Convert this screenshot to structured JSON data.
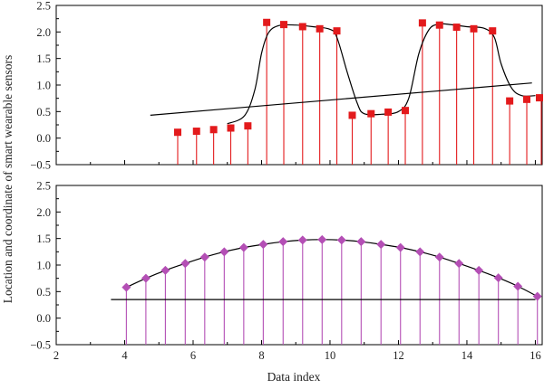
{
  "figure": {
    "ylabel": "Location and coordinate of smart wearable sensors",
    "xlabel": "Data index"
  },
  "chart_data": [
    {
      "type": "scatter",
      "panel": "top",
      "xlim": [
        2,
        16.2
      ],
      "ylim": [
        -0.5,
        2.5
      ],
      "yticks": [
        -0.5,
        0.0,
        0.5,
        1.0,
        1.5,
        2.0,
        2.5
      ],
      "ytick_labels": [
        "−0.5",
        "0.0",
        "0.5",
        "1.0",
        "1.5",
        "2.0",
        "2.5"
      ],
      "xticks": [
        2,
        4,
        6,
        8,
        10,
        12,
        14,
        16
      ],
      "xtick_labels": [],
      "series": [
        {
          "kind": "stem",
          "marker": "square",
          "color": "#e31a1c",
          "x": [
            5.55,
            6.1,
            6.6,
            7.1,
            7.6,
            8.15,
            8.65,
            9.2,
            9.7,
            10.2,
            10.65,
            11.2,
            11.7,
            12.2,
            12.7,
            13.2,
            13.7,
            14.2,
            14.75,
            15.25,
            15.75,
            16.2
          ],
          "y": [
            0.11,
            0.13,
            0.16,
            0.19,
            0.23,
            2.18,
            2.14,
            2.1,
            2.06,
            2.02,
            0.43,
            0.46,
            0.49,
            0.52,
            2.17,
            2.13,
            2.09,
            2.06,
            2.02,
            0.7,
            0.73,
            0.76
          ]
        },
        {
          "kind": "line",
          "style": "smooth-fit",
          "color": "#000000",
          "x": [
            7.0,
            7.5,
            7.8,
            8.0,
            8.2,
            8.5,
            9.0,
            9.5,
            10.0,
            10.2,
            10.5,
            10.8,
            11.0,
            11.5,
            12.0,
            12.3,
            12.6,
            12.9,
            13.2,
            13.5,
            14.0,
            14.5,
            14.8,
            15.0,
            15.3,
            15.6,
            16.0
          ],
          "y": [
            0.27,
            0.42,
            0.9,
            1.6,
            1.98,
            2.12,
            2.13,
            2.1,
            2.05,
            1.9,
            1.25,
            0.65,
            0.46,
            0.45,
            0.5,
            0.75,
            1.6,
            2.05,
            2.15,
            2.14,
            2.1,
            2.07,
            1.9,
            1.4,
            0.95,
            0.8,
            0.8
          ]
        },
        {
          "kind": "line",
          "style": "linear-fit",
          "color": "#000000",
          "x": [
            4.75,
            15.9
          ],
          "y": [
            0.43,
            1.04
          ]
        }
      ]
    },
    {
      "type": "scatter",
      "panel": "bottom",
      "xlim": [
        2,
        16.2
      ],
      "ylim": [
        -0.5,
        2.5
      ],
      "yticks": [
        -0.5,
        0.0,
        0.5,
        1.0,
        1.5,
        2.0,
        2.5
      ],
      "ytick_labels": [
        "−0.5",
        "0.0",
        "0.5",
        "1.0",
        "1.5",
        "2.0",
        "2.5"
      ],
      "xticks": [
        2,
        4,
        6,
        8,
        10,
        12,
        14,
        16
      ],
      "xtick_labels": [
        "2",
        "4",
        "6",
        "8",
        "10",
        "12",
        "14",
        "16"
      ],
      "series": [
        {
          "kind": "stem",
          "marker": "diamond",
          "color": "#b44fb5",
          "x": [
            4.05,
            4.62,
            5.19,
            5.77,
            6.34,
            6.91,
            7.48,
            8.05,
            8.63,
            9.2,
            9.77,
            10.34,
            10.91,
            11.49,
            12.06,
            12.63,
            13.2,
            13.77,
            14.35,
            14.92,
            15.49,
            16.06
          ],
          "y": [
            0.58,
            0.75,
            0.9,
            1.03,
            1.15,
            1.25,
            1.33,
            1.39,
            1.44,
            1.47,
            1.48,
            1.47,
            1.44,
            1.39,
            1.33,
            1.25,
            1.15,
            1.03,
            0.9,
            0.76,
            0.6,
            0.41
          ]
        },
        {
          "kind": "line",
          "style": "smooth-fit",
          "color": "#000000",
          "x": [
            4.05,
            4.62,
            5.19,
            5.77,
            6.34,
            6.91,
            7.48,
            8.05,
            8.63,
            9.2,
            9.77,
            10.34,
            10.91,
            11.49,
            12.06,
            12.63,
            13.2,
            13.77,
            14.35,
            14.92,
            15.49,
            16.06
          ],
          "y": [
            0.58,
            0.75,
            0.9,
            1.03,
            1.15,
            1.25,
            1.33,
            1.39,
            1.44,
            1.47,
            1.48,
            1.47,
            1.44,
            1.39,
            1.33,
            1.25,
            1.15,
            1.03,
            0.9,
            0.76,
            0.6,
            0.41
          ]
        },
        {
          "kind": "line",
          "style": "linear-fit",
          "color": "#000000",
          "x": [
            3.6,
            16.0
          ],
          "y": [
            0.35,
            0.35
          ]
        }
      ]
    }
  ]
}
